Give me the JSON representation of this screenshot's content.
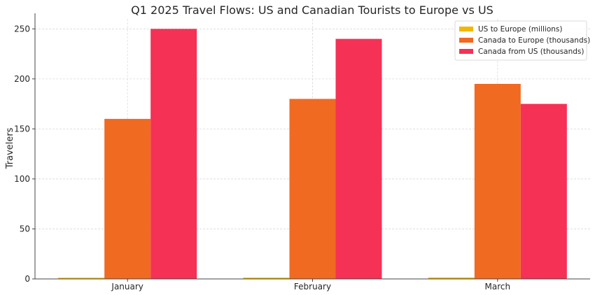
{
  "chart_data": {
    "type": "bar",
    "title": "Q1 2025 Travel Flows: US and Canadian Tourists to Europe vs US",
    "xlabel": "",
    "ylabel": "Travelers",
    "categories": [
      "January",
      "February",
      "March"
    ],
    "ylim": [
      0,
      260
    ],
    "yticks": [
      0,
      50,
      100,
      150,
      200,
      250
    ],
    "grid": true,
    "legend_position": "top-right",
    "series": [
      {
        "name": "US to Europe (millions)",
        "values": [
          1.2,
          1.3,
          1.4
        ],
        "color": "#f2b705"
      },
      {
        "name": "Canada to Europe (thousands)",
        "values": [
          160,
          180,
          195
        ],
        "color": "#f06a22"
      },
      {
        "name": "Canada from US (thousands)",
        "values": [
          250,
          240,
          175
        ],
        "color": "#f53155"
      }
    ]
  }
}
